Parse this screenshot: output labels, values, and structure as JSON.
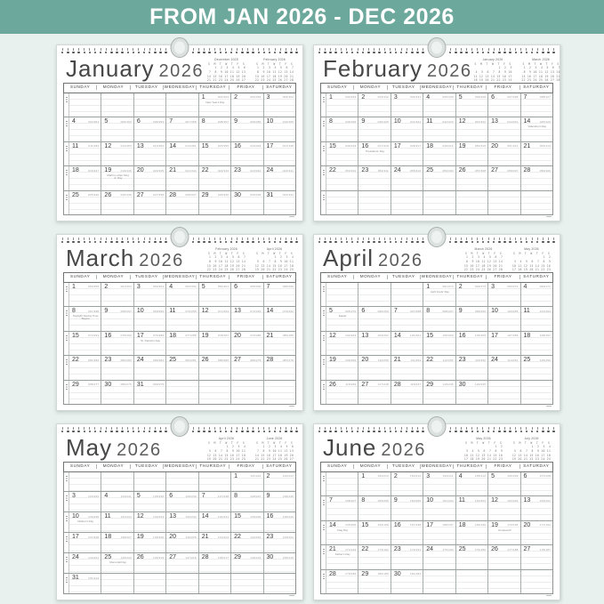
{
  "banner": {
    "text": "FROM JAN 2026 - DEC 2026",
    "bg_color": "#6ca89b",
    "text_color": "#ffffff"
  },
  "background_color": "#e9f1ee",
  "weekdays": [
    "SUNDAY",
    "MONDAY",
    "TUESDAY",
    "WEDNESDAY",
    "THURSDAY",
    "FRIDAY",
    "SATURDAY"
  ],
  "mini_week_header": "S  M  T  W  T  F  S",
  "year": "2026",
  "months": [
    {
      "name": "January",
      "year": "2026",
      "first_dow": 4,
      "days": 31,
      "doy_start": 1,
      "minis": [
        {
          "label": "December 2025",
          "first_dow": 1,
          "days": 31
        },
        {
          "label": "February 2026",
          "first_dow": 0,
          "days": 28
        }
      ],
      "holidays": {
        "1": "New Year's Day",
        "19": "Martin Luther King Jr. Day"
      }
    },
    {
      "name": "February",
      "year": "2026",
      "first_dow": 0,
      "days": 28,
      "rows": 5,
      "doy_start": 32,
      "minis": [
        {
          "label": "January 2026",
          "first_dow": 4,
          "days": 31
        },
        {
          "label": "March 2026",
          "first_dow": 0,
          "days": 31
        }
      ],
      "holidays": {
        "14": "Valentine's Day",
        "16": "Presidents' Day"
      }
    },
    {
      "name": "March",
      "year": "2026",
      "first_dow": 0,
      "days": 31,
      "doy_start": 60,
      "minis": [
        {
          "label": "February 2026",
          "first_dow": 0,
          "days": 28
        },
        {
          "label": "April 2026",
          "first_dow": 3,
          "days": 30
        }
      ],
      "holidays": {
        "8": "Daylight Saving Time Begins",
        "17": "St. Patrick's Day"
      }
    },
    {
      "name": "April",
      "year": "2026",
      "first_dow": 3,
      "days": 30,
      "doy_start": 91,
      "minis": [
        {
          "label": "March 2026",
          "first_dow": 0,
          "days": 31
        },
        {
          "label": "May 2026",
          "first_dow": 5,
          "days": 31
        }
      ],
      "holidays": {
        "1": "April Fools' Day",
        "5": "Easter"
      }
    },
    {
      "name": "May",
      "year": "2026",
      "first_dow": 5,
      "days": 31,
      "doy_start": 121,
      "minis": [
        {
          "label": "April 2026",
          "first_dow": 3,
          "days": 30
        },
        {
          "label": "June 2026",
          "first_dow": 1,
          "days": 30
        }
      ],
      "holidays": {
        "10": "Mother's Day",
        "25": "Memorial Day"
      }
    },
    {
      "name": "June",
      "year": "2026",
      "first_dow": 1,
      "days": 30,
      "doy_start": 152,
      "minis": [
        {
          "label": "May 2026",
          "first_dow": 5,
          "days": 31
        },
        {
          "label": "July 2026",
          "first_dow": 3,
          "days": 31
        }
      ],
      "holidays": {
        "14": "Flag Day",
        "19": "Juneteenth",
        "21": "Father's Day"
      }
    }
  ]
}
